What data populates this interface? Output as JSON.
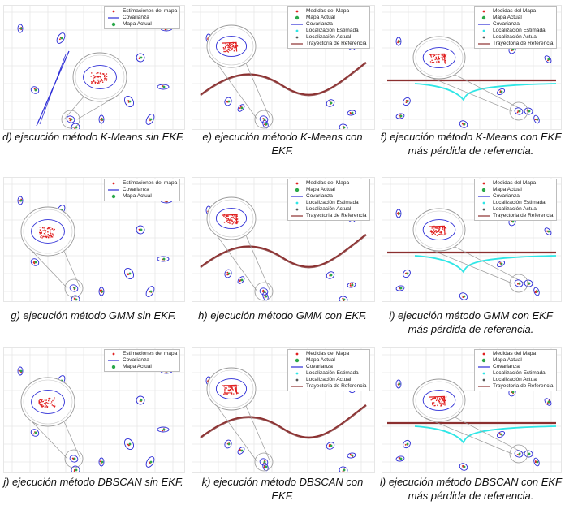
{
  "colors": {
    "grid": "#e7e7e7",
    "ellipse": "#2b2bd6",
    "measurement": "#e02020",
    "map": "#2aa84a",
    "trajectory_ref": "#8b2f2f",
    "trajectory_est": "#9a5a5a",
    "cyan": "#2fe6e6",
    "zoom": "#9a9a9a"
  },
  "panels": [
    {
      "id": "d",
      "caption": "d) ejecución método K-Means sin EKF.",
      "legend": [
        "Estimaciones del mapa",
        "Covarianza",
        "Mapa Actual"
      ],
      "style": "nonekf",
      "legend_layout": "small"
    },
    {
      "id": "e",
      "caption": "e) ejecución método K-Means con EKF.",
      "legend": [
        "Medidas del Mapa",
        "Mapa Actual",
        "Covarianza",
        "Localización Estimada",
        "Localización Actual",
        "Trayectoria de Referencia"
      ],
      "style": "ekf",
      "legend_layout": "big"
    },
    {
      "id": "f",
      "caption": "f) ejecución método K-Means con EKF más pérdida de referencia.",
      "legend": [
        "Medidas del Mapa",
        "Mapa Actual",
        "Covarianza",
        "Localización Estimada",
        "Localización Actual",
        "Trayectoria de Referencia"
      ],
      "style": "loss",
      "legend_layout": "big"
    },
    {
      "id": "g",
      "caption": "g) ejecución método GMM sin EKF.",
      "legend": [
        "Estimaciones del mapa",
        "Covarianza",
        "Mapa Actual"
      ],
      "style": "nonekf",
      "legend_layout": "small"
    },
    {
      "id": "h",
      "caption": "h) ejecución método GMM con EKF.",
      "legend": [
        "Medidas del Mapa",
        "Mapa Actual",
        "Covarianza",
        "Localización Estimada",
        "Localización Actual",
        "Trayectoria de Referencia"
      ],
      "style": "ekf",
      "legend_layout": "big"
    },
    {
      "id": "i",
      "caption": "i) ejecución método GMM con EKF más pérdida de referencia.",
      "legend": [
        "Medidas del Mapa",
        "Mapa Actual",
        "Covarianza",
        "Localización Estimada",
        "Localización Actual",
        "Trayectoria de Referencia"
      ],
      "style": "loss",
      "legend_layout": "big"
    },
    {
      "id": "j",
      "caption": "j) ejecución método DBSCAN sin EKF.",
      "legend": [
        "Estimaciones del mapa",
        "Covarianza",
        "Mapa Actual"
      ],
      "style": "nonekf",
      "legend_layout": "small"
    },
    {
      "id": "k",
      "caption": "k) ejecución método DBSCAN con EKF.",
      "legend": [
        "Medidas del Mapa",
        "Mapa Actual",
        "Covarianza",
        "Localización Estimada",
        "Localización Actual",
        "Trayectoria de Referencia"
      ],
      "style": "ekf",
      "legend_layout": "big"
    },
    {
      "id": "l",
      "caption": "l) ejecución método DBSCAN con EKF más pérdida de referencia.",
      "legend": [
        "Medidas del Mapa",
        "Mapa Actual",
        "Covarianza",
        "Localización Estimada",
        "Localización Actual",
        "Trayectoria de Referencia"
      ],
      "style": "loss",
      "legend_layout": "big"
    }
  ]
}
